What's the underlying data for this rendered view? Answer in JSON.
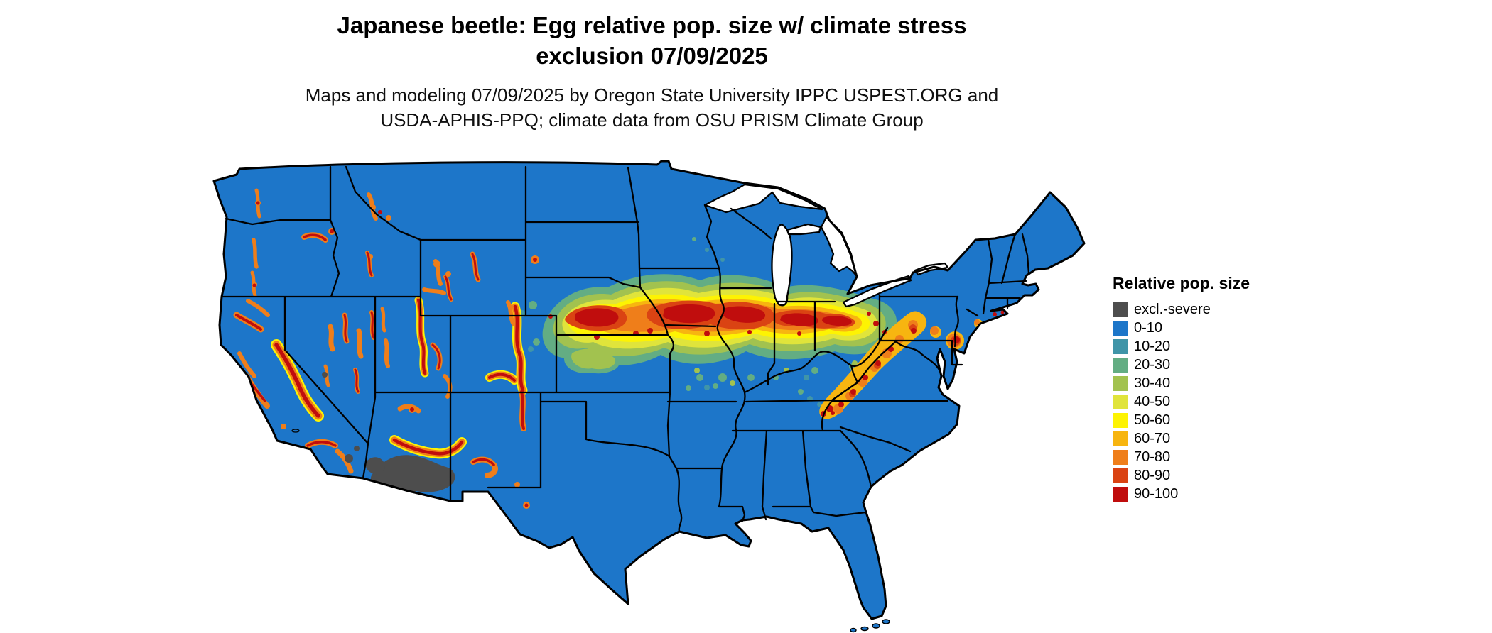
{
  "title": {
    "line1": "Japanese beetle: Egg relative pop. size w/ climate stress",
    "line2": "exclusion 07/09/2025"
  },
  "subtitle": {
    "line1": "Maps and modeling 07/09/2025 by Oregon State University IPPC USPEST.ORG and",
    "line2": "USDA-APHIS-PPQ; climate data from OSU PRISM Climate Group"
  },
  "legend": {
    "title": "Relative pop. size",
    "items": [
      {
        "key": "excl",
        "label": "excl.-severe",
        "color": "#4d4d4d"
      },
      {
        "key": "b0",
        "label": "0-10",
        "color": "#1d76c9"
      },
      {
        "key": "b10",
        "label": "10-20",
        "color": "#4095a8"
      },
      {
        "key": "b20",
        "label": "20-30",
        "color": "#63ad83"
      },
      {
        "key": "b30",
        "label": "30-40",
        "color": "#a2c24f"
      },
      {
        "key": "b40",
        "label": "40-50",
        "color": "#e0e43b"
      },
      {
        "key": "b50",
        "label": "50-60",
        "color": "#fdf303"
      },
      {
        "key": "b60",
        "label": "60-70",
        "color": "#f7b510"
      },
      {
        "key": "b70",
        "label": "70-80",
        "color": "#ef7e1a"
      },
      {
        "key": "b80",
        "label": "80-90",
        "color": "#da4313"
      },
      {
        "key": "b90",
        "label": "90-100",
        "color": "#c00d0d"
      }
    ]
  },
  "map": {
    "outline_color": "#000000",
    "water_color": "#ffffff"
  }
}
